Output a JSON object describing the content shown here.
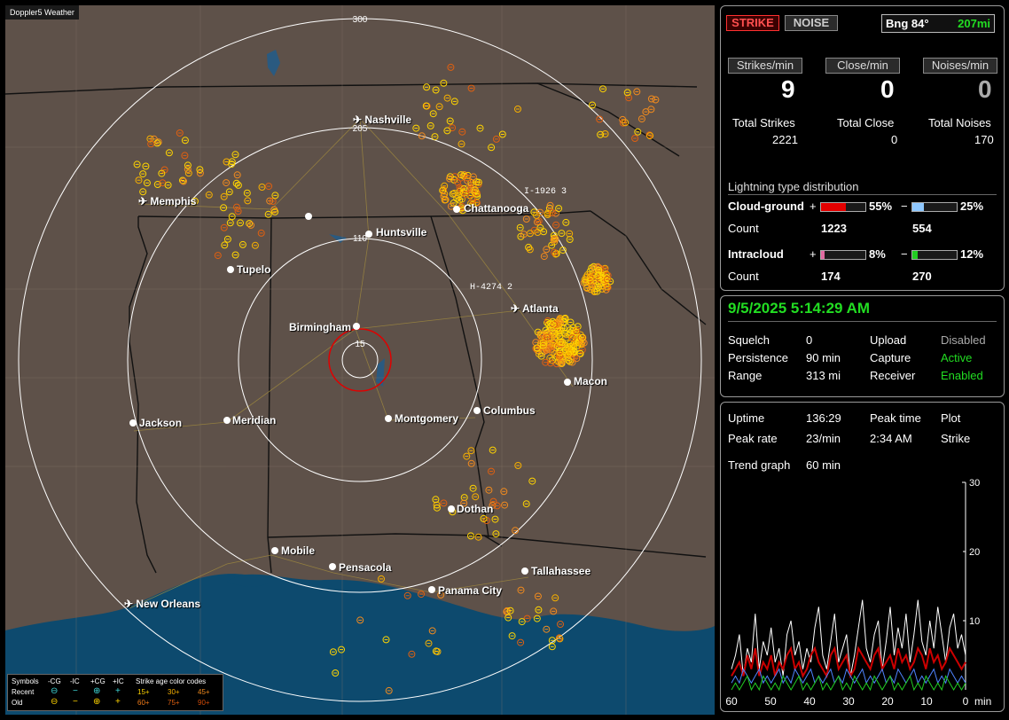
{
  "app": {
    "title": "Doppler5 Weather"
  },
  "map": {
    "ring_labels": {
      "r300": "300",
      "r205": "205",
      "r110": "110",
      "r15": "15"
    },
    "cities": {
      "nashville": "Nashville",
      "memphis": "Memphis",
      "chattanooga": "Chattanooga",
      "huntsville": "Huntsville",
      "tupelo": "Tupelo",
      "atlanta": "Atlanta",
      "birmingham": "Birmingham",
      "macon": "Macon",
      "jackson": "Jackson",
      "meridian": "Meridian",
      "montgomery": "Montgomery",
      "columbus": "Columbus",
      "dothan": "Dothan",
      "mobile": "Mobile",
      "pensacola": "Pensacola",
      "tallahassee": "Tallahassee",
      "panama_city": "Panama City",
      "new_orleans": "New Orleans"
    },
    "highways": {
      "i1926": "I-1926  3",
      "h4274": "H-4274  2"
    }
  },
  "legend": {
    "symbols": "Symbols",
    "neg_cg": "-CG",
    "neg_ic": "-IC",
    "pos_cg": "+CG",
    "pos_ic": "+IC",
    "age_title": "Strike age color codes",
    "recent": "Recent",
    "old": "Old",
    "age_15": "15+",
    "age_30": "30+",
    "age_45": "45+",
    "age_60": "60+",
    "age_75": "75+",
    "age_90": "90+"
  },
  "status": {
    "strike_btn": "STRIKE",
    "noise_btn": "NOISE",
    "bearing": "Bng 84°",
    "distance": "207mi",
    "strikes_per_min_label": "Strikes/min",
    "close_per_min_label": "Close/min",
    "noises_per_min_label": "Noises/min",
    "strikes_per_min": "9",
    "close_per_min": "0",
    "noises_per_min": "0",
    "total_strikes_label": "Total Strikes",
    "total_close_label": "Total Close",
    "total_noises_label": "Total Noises",
    "total_strikes": "2221",
    "total_close": "0",
    "total_noises": "170",
    "dist_title": "Lightning type distribution",
    "cloud_ground": "Cloud-ground",
    "intracloud": "Intracloud",
    "count": "Count",
    "plus": "+",
    "minus": "−",
    "cg_pos_pct": "55%",
    "cg_neg_pct": "25%",
    "ic_pos_pct": "8%",
    "ic_neg_pct": "12%",
    "cg_pos_fill": 0.55,
    "cg_neg_fill": 0.25,
    "ic_pos_fill": 0.08,
    "ic_neg_fill": 0.12,
    "cg_pos_count": "1223",
    "cg_neg_count": "554",
    "ic_pos_count": "174",
    "ic_neg_count": "270"
  },
  "settings": {
    "datetime": "9/5/2025 5:14:29 AM",
    "squelch_label": "Squelch",
    "squelch": "0",
    "persistence_label": "Persistence",
    "persistence": "90 min",
    "range_label": "Range",
    "range": "313 mi",
    "upload_label": "Upload",
    "upload": "Disabled",
    "capture_label": "Capture",
    "capture": "Active",
    "receiver_label": "Receiver",
    "receiver": "Enabled"
  },
  "stats": {
    "uptime_label": "Uptime",
    "uptime": "136:29",
    "peak_time_label": "Peak time",
    "peak_time": "2:34 AM",
    "plot_label": "Plot",
    "plot": "Strike",
    "peak_rate_label": "Peak rate",
    "peak_rate": "23/min",
    "trend_label": "Trend graph",
    "trend": "60 min"
  },
  "colors": {
    "map_bg": "#5e5149",
    "water": "#0d4a6e",
    "strike_yellow": "#ffd400",
    "strike_orange": "#f08a1e",
    "green_text": "#22dd22",
    "red_bar": "#e30000",
    "blue_bar": "#8fc8ff",
    "pink_bar": "#e06aa0",
    "green_bar": "#22cc22"
  },
  "chart_data": {
    "type": "line",
    "title": "",
    "xlabel": "min",
    "ylabel": "",
    "x_ticks": [
      "60",
      "50",
      "40",
      "30",
      "20",
      "10",
      "0"
    ],
    "y_ticks": [
      "10",
      "20",
      "30"
    ],
    "xlim": [
      60,
      0
    ],
    "ylim": [
      0,
      30
    ],
    "series": [
      {
        "color": "#ffffff",
        "values": [
          3,
          5,
          8,
          2,
          6,
          4,
          11,
          3,
          7,
          5,
          9,
          4,
          6,
          2,
          8,
          10,
          5,
          7,
          3,
          6,
          4,
          9,
          12,
          5,
          3,
          7,
          11,
          4,
          6,
          8,
          2,
          5,
          9,
          13,
          6,
          4,
          8,
          10,
          3,
          7,
          12,
          5,
          9,
          6,
          11,
          4,
          8,
          13,
          7,
          5,
          10,
          6,
          12,
          8,
          4,
          9,
          11,
          6,
          8,
          5
        ]
      },
      {
        "color": "#cc0000",
        "values": [
          2,
          3,
          4,
          2,
          5,
          3,
          6,
          2,
          4,
          3,
          5,
          2,
          4,
          3,
          5,
          6,
          3,
          4,
          2,
          3,
          5,
          6,
          4,
          3,
          2,
          5,
          6,
          3,
          4,
          5,
          2,
          3,
          6,
          5,
          4,
          3,
          5,
          6,
          3,
          4,
          5,
          3,
          6,
          4,
          5,
          3,
          4,
          6,
          5,
          3,
          6,
          4,
          5,
          3,
          4,
          6,
          5,
          4,
          3,
          4
        ]
      },
      {
        "color": "#4f84ff",
        "values": [
          1,
          2,
          1,
          3,
          2,
          1,
          2,
          3,
          1,
          2,
          1,
          2,
          3,
          1,
          2,
          1,
          3,
          2,
          1,
          2,
          3,
          1,
          2,
          1,
          2,
          3,
          1,
          2,
          1,
          3,
          2,
          1,
          2,
          3,
          1,
          2,
          1,
          2,
          3,
          1,
          2,
          1,
          3,
          2,
          1,
          2,
          3,
          1,
          2,
          1,
          2,
          3,
          1,
          2,
          1,
          3,
          2,
          1,
          2,
          1
        ]
      },
      {
        "color": "#22cc22",
        "values": [
          0,
          1,
          0,
          1,
          2,
          0,
          1,
          0,
          2,
          1,
          0,
          1,
          0,
          2,
          1,
          0,
          1,
          2,
          0,
          1,
          0,
          1,
          2,
          0,
          1,
          0,
          1,
          2,
          0,
          1,
          0,
          2,
          1,
          0,
          1,
          0,
          2,
          1,
          0,
          1,
          2,
          0,
          1,
          0,
          1,
          2,
          0,
          1,
          0,
          2,
          1,
          0,
          1,
          0,
          2,
          1,
          0,
          1,
          0,
          1
        ]
      }
    ]
  }
}
